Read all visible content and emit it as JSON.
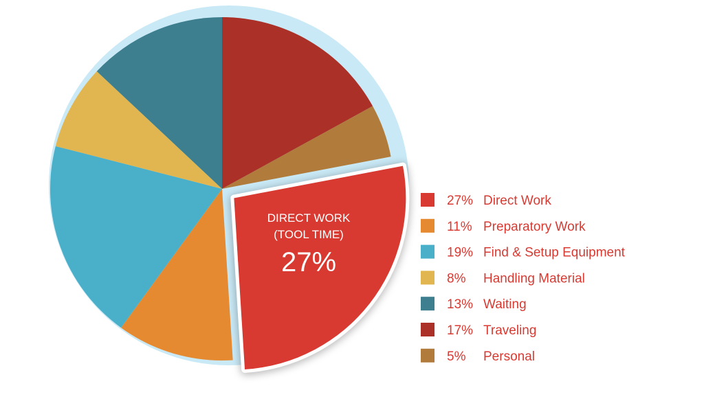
{
  "chart_data": {
    "type": "pie",
    "callout": {
      "line1": "DIRECT WORK",
      "line2": "(TOOL TIME)",
      "value": "27%"
    },
    "slices": [
      {
        "label": "Direct Work",
        "value": 27,
        "display": "27%",
        "color": "#d83a32",
        "exploded": true
      },
      {
        "label": "Preparatory Work",
        "value": 11,
        "display": "11%",
        "color": "#e68a31"
      },
      {
        "label": "Find & Setup Equipment",
        "value": 19,
        "display": "19%",
        "color": "#4ab0c9"
      },
      {
        "label": "Handling Material",
        "value": 8,
        "display": "8%",
        "color": "#e1b651"
      },
      {
        "label": "Waiting",
        "value": 13,
        "display": "13%",
        "color": "#3d7f8e"
      },
      {
        "label": "Traveling",
        "value": 17,
        "display": "17%",
        "color": "#aa3028"
      },
      {
        "label": "Personal",
        "value": 5,
        "display": "5%",
        "color": "#b07b3b"
      }
    ],
    "drawing_order_clockwise_from_top": [
      "Traveling",
      "Personal",
      "Direct Work",
      "Preparatory Work",
      "Find & Setup Equipment",
      "Handling Material",
      "Waiting"
    ],
    "legend_placement": "right",
    "shadow_color": "#c9e9f6"
  }
}
